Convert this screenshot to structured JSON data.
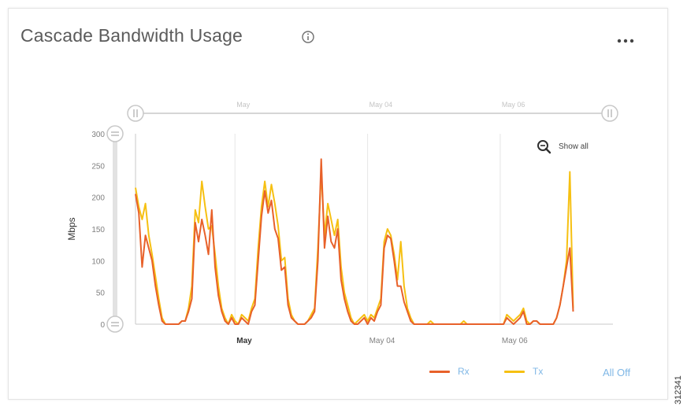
{
  "header": {
    "title": "Cascade Bandwidth Usage",
    "more_label": "..."
  },
  "side_code": "312341",
  "legend": {
    "all_off": "All Off"
  },
  "colors": {
    "rx": "#e8612a",
    "tx": "#f6c012",
    "link": "#7fb7e6",
    "axis_text": "#808080",
    "grid": "#e6e6e6"
  },
  "chart_data": {
    "type": "line",
    "title": "Cascade Bandwidth Usage",
    "ylabel": "Mbps",
    "xlabel": "",
    "ylim": [
      0,
      300
    ],
    "yticks": [
      0,
      50,
      100,
      150,
      200,
      250,
      300
    ],
    "x_unit": "hour index (0-144)",
    "xlim": [
      0,
      144
    ],
    "xticks": [
      {
        "x": 30,
        "label": "May"
      },
      {
        "x": 70,
        "label": "May 04"
      },
      {
        "x": 110,
        "label": "May 06"
      }
    ],
    "navigator_ticks": [
      {
        "x": 30,
        "label": "May"
      },
      {
        "x": 70,
        "label": "May 04"
      },
      {
        "x": 110,
        "label": "May 06"
      }
    ],
    "zoom_label": "Show all",
    "legend_position": "bottom-right",
    "series": [
      {
        "name": "Rx",
        "color": "#e8612a",
        "points": [
          [
            0,
            205
          ],
          [
            1,
            175
          ],
          [
            2,
            90
          ],
          [
            3,
            140
          ],
          [
            4,
            120
          ],
          [
            5,
            100
          ],
          [
            6,
            60
          ],
          [
            7,
            30
          ],
          [
            8,
            5
          ],
          [
            9,
            0
          ],
          [
            10,
            0
          ],
          [
            11,
            0
          ],
          [
            12,
            0
          ],
          [
            13,
            0
          ],
          [
            14,
            5
          ],
          [
            15,
            5
          ],
          [
            16,
            20
          ],
          [
            17,
            40
          ],
          [
            18,
            160
          ],
          [
            19,
            130
          ],
          [
            20,
            165
          ],
          [
            21,
            140
          ],
          [
            22,
            110
          ],
          [
            23,
            180
          ],
          [
            24,
            90
          ],
          [
            25,
            45
          ],
          [
            26,
            20
          ],
          [
            27,
            5
          ],
          [
            28,
            0
          ],
          [
            29,
            10
          ],
          [
            30,
            0
          ],
          [
            31,
            0
          ],
          [
            32,
            10
          ],
          [
            33,
            5
          ],
          [
            34,
            0
          ],
          [
            35,
            20
          ],
          [
            36,
            30
          ],
          [
            37,
            100
          ],
          [
            38,
            170
          ],
          [
            39,
            210
          ],
          [
            40,
            175
          ],
          [
            41,
            195
          ],
          [
            42,
            150
          ],
          [
            43,
            135
          ],
          [
            44,
            85
          ],
          [
            45,
            90
          ],
          [
            46,
            30
          ],
          [
            47,
            10
          ],
          [
            48,
            5
          ],
          [
            49,
            0
          ],
          [
            50,
            0
          ],
          [
            51,
            0
          ],
          [
            52,
            5
          ],
          [
            53,
            10
          ],
          [
            54,
            20
          ],
          [
            55,
            100
          ],
          [
            56,
            260
          ],
          [
            57,
            120
          ],
          [
            58,
            170
          ],
          [
            59,
            130
          ],
          [
            60,
            120
          ],
          [
            61,
            150
          ],
          [
            62,
            70
          ],
          [
            63,
            40
          ],
          [
            64,
            20
          ],
          [
            65,
            5
          ],
          [
            66,
            0
          ],
          [
            67,
            0
          ],
          [
            68,
            5
          ],
          [
            69,
            10
          ],
          [
            70,
            0
          ],
          [
            71,
            10
          ],
          [
            72,
            5
          ],
          [
            73,
            20
          ],
          [
            74,
            30
          ],
          [
            75,
            120
          ],
          [
            76,
            140
          ],
          [
            77,
            135
          ],
          [
            78,
            100
          ],
          [
            79,
            60
          ],
          [
            80,
            60
          ],
          [
            81,
            35
          ],
          [
            82,
            20
          ],
          [
            83,
            5
          ],
          [
            84,
            0
          ],
          [
            85,
            0
          ],
          [
            86,
            0
          ],
          [
            87,
            0
          ],
          [
            88,
            0
          ],
          [
            89,
            0
          ],
          [
            90,
            0
          ],
          [
            91,
            0
          ],
          [
            92,
            0
          ],
          [
            93,
            0
          ],
          [
            94,
            0
          ],
          [
            95,
            0
          ],
          [
            96,
            0
          ],
          [
            97,
            0
          ],
          [
            98,
            0
          ],
          [
            99,
            0
          ],
          [
            100,
            0
          ],
          [
            101,
            0
          ],
          [
            102,
            0
          ],
          [
            103,
            0
          ],
          [
            104,
            0
          ],
          [
            105,
            0
          ],
          [
            106,
            0
          ],
          [
            107,
            0
          ],
          [
            108,
            0
          ],
          [
            109,
            0
          ],
          [
            110,
            0
          ],
          [
            111,
            0
          ],
          [
            112,
            10
          ],
          [
            113,
            5
          ],
          [
            114,
            0
          ],
          [
            115,
            5
          ],
          [
            116,
            10
          ],
          [
            117,
            20
          ],
          [
            118,
            0
          ],
          [
            119,
            0
          ],
          [
            120,
            5
          ],
          [
            121,
            5
          ],
          [
            122,
            0
          ],
          [
            123,
            0
          ],
          [
            124,
            0
          ],
          [
            125,
            0
          ],
          [
            126,
            0
          ],
          [
            127,
            10
          ],
          [
            128,
            30
          ],
          [
            129,
            60
          ],
          [
            130,
            90
          ],
          [
            131,
            120
          ],
          [
            132,
            20
          ]
        ]
      },
      {
        "name": "Tx",
        "color": "#f6c012",
        "points": [
          [
            0,
            215
          ],
          [
            1,
            185
          ],
          [
            2,
            165
          ],
          [
            3,
            190
          ],
          [
            4,
            140
          ],
          [
            5,
            110
          ],
          [
            6,
            75
          ],
          [
            7,
            40
          ],
          [
            8,
            10
          ],
          [
            9,
            0
          ],
          [
            10,
            0
          ],
          [
            11,
            0
          ],
          [
            12,
            0
          ],
          [
            13,
            0
          ],
          [
            14,
            5
          ],
          [
            15,
            5
          ],
          [
            16,
            25
          ],
          [
            17,
            60
          ],
          [
            18,
            180
          ],
          [
            19,
            160
          ],
          [
            20,
            225
          ],
          [
            21,
            185
          ],
          [
            22,
            150
          ],
          [
            23,
            155
          ],
          [
            24,
            110
          ],
          [
            25,
            60
          ],
          [
            26,
            25
          ],
          [
            27,
            10
          ],
          [
            28,
            0
          ],
          [
            29,
            15
          ],
          [
            30,
            5
          ],
          [
            31,
            0
          ],
          [
            32,
            15
          ],
          [
            33,
            10
          ],
          [
            34,
            5
          ],
          [
            35,
            25
          ],
          [
            36,
            40
          ],
          [
            37,
            120
          ],
          [
            38,
            185
          ],
          [
            39,
            225
          ],
          [
            40,
            185
          ],
          [
            41,
            220
          ],
          [
            42,
            190
          ],
          [
            43,
            155
          ],
          [
            44,
            100
          ],
          [
            45,
            105
          ],
          [
            46,
            40
          ],
          [
            47,
            15
          ],
          [
            48,
            5
          ],
          [
            49,
            0
          ],
          [
            50,
            0
          ],
          [
            51,
            0
          ],
          [
            52,
            5
          ],
          [
            53,
            15
          ],
          [
            54,
            25
          ],
          [
            55,
            120
          ],
          [
            56,
            240
          ],
          [
            57,
            140
          ],
          [
            58,
            190
          ],
          [
            59,
            165
          ],
          [
            60,
            140
          ],
          [
            61,
            165
          ],
          [
            62,
            90
          ],
          [
            63,
            50
          ],
          [
            64,
            30
          ],
          [
            65,
            10
          ],
          [
            66,
            0
          ],
          [
            67,
            5
          ],
          [
            68,
            10
          ],
          [
            69,
            15
          ],
          [
            70,
            5
          ],
          [
            71,
            15
          ],
          [
            72,
            10
          ],
          [
            73,
            25
          ],
          [
            74,
            40
          ],
          [
            75,
            130
          ],
          [
            76,
            150
          ],
          [
            77,
            140
          ],
          [
            78,
            110
          ],
          [
            79,
            70
          ],
          [
            80,
            130
          ],
          [
            81,
            60
          ],
          [
            82,
            25
          ],
          [
            83,
            10
          ],
          [
            84,
            0
          ],
          [
            85,
            0
          ],
          [
            86,
            0
          ],
          [
            87,
            0
          ],
          [
            88,
            0
          ],
          [
            89,
            5
          ],
          [
            90,
            0
          ],
          [
            91,
            0
          ],
          [
            92,
            0
          ],
          [
            93,
            0
          ],
          [
            94,
            0
          ],
          [
            95,
            0
          ],
          [
            96,
            0
          ],
          [
            97,
            0
          ],
          [
            98,
            0
          ],
          [
            99,
            5
          ],
          [
            100,
            0
          ],
          [
            101,
            0
          ],
          [
            102,
            0
          ],
          [
            103,
            0
          ],
          [
            104,
            0
          ],
          [
            105,
            0
          ],
          [
            106,
            0
          ],
          [
            107,
            0
          ],
          [
            108,
            0
          ],
          [
            109,
            0
          ],
          [
            110,
            0
          ],
          [
            111,
            0
          ],
          [
            112,
            15
          ],
          [
            113,
            10
          ],
          [
            114,
            5
          ],
          [
            115,
            10
          ],
          [
            116,
            15
          ],
          [
            117,
            25
          ],
          [
            118,
            5
          ],
          [
            119,
            0
          ],
          [
            120,
            5
          ],
          [
            121,
            5
          ],
          [
            122,
            0
          ],
          [
            123,
            0
          ],
          [
            124,
            0
          ],
          [
            125,
            0
          ],
          [
            126,
            0
          ],
          [
            127,
            10
          ],
          [
            128,
            30
          ],
          [
            129,
            60
          ],
          [
            130,
            100
          ],
          [
            131,
            240
          ],
          [
            132,
            25
          ]
        ]
      }
    ]
  }
}
